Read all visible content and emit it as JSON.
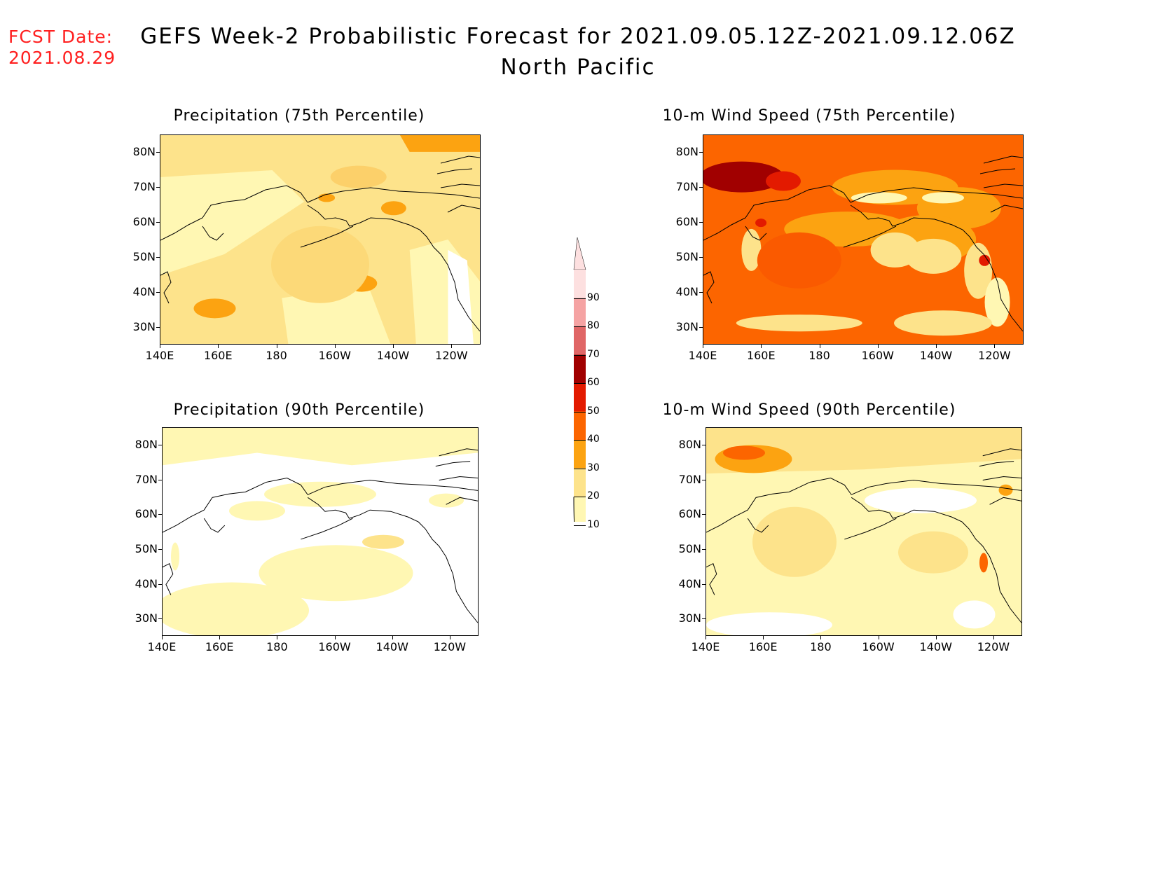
{
  "header": {
    "fcst_label": "FCST Date:",
    "fcst_date": "2021.08.29",
    "title": "GEFS Week-2 Probabilistic Forecast for 2021.09.05.12Z-2021.09.12.06Z",
    "region": "North Pacific"
  },
  "panels": [
    {
      "title": "Precipitation (75th Percentile)",
      "dominant_level": 20
    },
    {
      "title": "10-m Wind Speed (75th Percentile)",
      "dominant_level": 40
    },
    {
      "title": "Precipitation (90th Percentile)",
      "dominant_level": 10
    },
    {
      "title": "10-m Wind Speed (90th Percentile)",
      "dominant_level": 20
    }
  ],
  "axes": {
    "lat_labels": [
      "80N",
      "70N",
      "60N",
      "50N",
      "40N",
      "30N"
    ],
    "lon_labels": [
      "140E",
      "160E",
      "180",
      "160W",
      "140W",
      "120W"
    ]
  },
  "colorbar": {
    "levels": [
      "90",
      "80",
      "70",
      "60",
      "50",
      "40",
      "30",
      "20",
      "10"
    ],
    "colors": {
      "10": "#fff7b3",
      "20": "#fde38b",
      "30": "#fca311",
      "40": "#fc6500",
      "50": "#e31a00",
      "60": "#a10000",
      "70": "#e06666",
      "80": "#f5a3a3",
      "90": "#fde0e0"
    }
  }
}
